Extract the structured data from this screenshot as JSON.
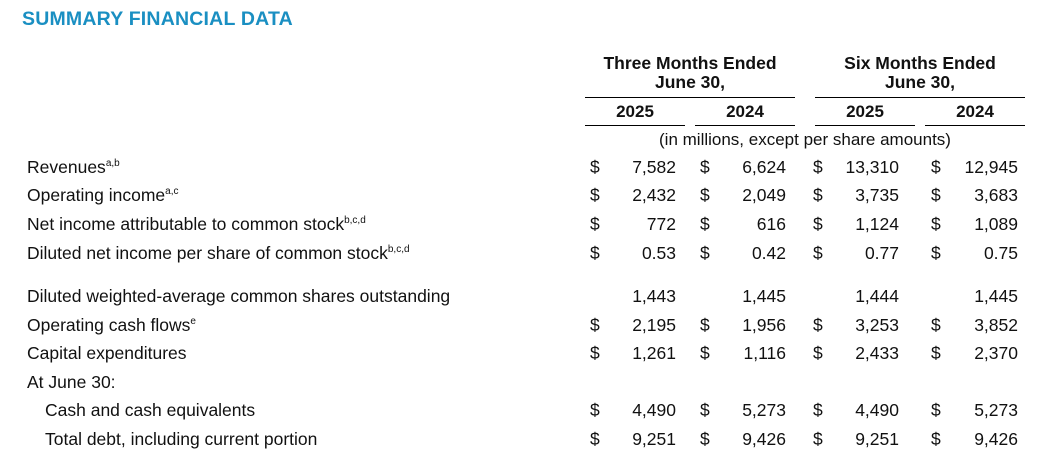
{
  "title": "SUMMARY FINANCIAL DATA",
  "header": {
    "three_months_line1": "Three Months Ended",
    "three_months_line2": "June 30,",
    "six_months_line1": "Six Months Ended",
    "six_months_line2": "June 30,",
    "years": [
      "2025",
      "2024",
      "2025",
      "2024"
    ],
    "units_note": "(in millions, except per share amounts)"
  },
  "rows": [
    {
      "label": "Revenues",
      "footnote": "a,b",
      "dollar": "$",
      "values": [
        "7,582",
        "6,624",
        "13,310",
        "12,945"
      ]
    },
    {
      "label": "Operating income",
      "footnote": "a,c",
      "dollar": "$",
      "values": [
        "2,432",
        "2,049",
        "3,735",
        "3,683"
      ]
    },
    {
      "label": "Net income attributable to common stock",
      "footnote": "b,c,d",
      "dollar": "$",
      "values": [
        "772",
        "616",
        "1,124",
        "1,089"
      ]
    },
    {
      "label": "Diluted net income per share of common stock",
      "footnote": "b,c,d",
      "dollar": "$",
      "values": [
        "0.53",
        "0.42",
        "0.77",
        "0.75"
      ]
    },
    {
      "label": "Diluted weighted-average common shares outstanding",
      "footnote": "",
      "dollar": "",
      "values": [
        "1,443",
        "1,445",
        "1,444",
        "1,445"
      ]
    },
    {
      "label": "Operating cash flows",
      "footnote": "e",
      "dollar": "$",
      "values": [
        "2,195",
        "1,956",
        "3,253",
        "3,852"
      ]
    },
    {
      "label": "Capital expenditures",
      "footnote": "",
      "dollar": "$",
      "values": [
        "1,261",
        "1,116",
        "2,433",
        "2,370"
      ]
    },
    {
      "label": "At June 30:",
      "footnote": "",
      "dollar": "",
      "values": [
        "",
        "",
        "",
        ""
      ]
    },
    {
      "label": "Cash and cash equivalents",
      "footnote": "",
      "dollar": "$",
      "values": [
        "4,490",
        "5,273",
        "4,490",
        "5,273"
      ],
      "indent": true
    },
    {
      "label": "Total debt, including current portion",
      "footnote": "",
      "dollar": "$",
      "values": [
        "9,251",
        "9,426",
        "9,251",
        "9,426"
      ],
      "indent": true
    }
  ]
}
